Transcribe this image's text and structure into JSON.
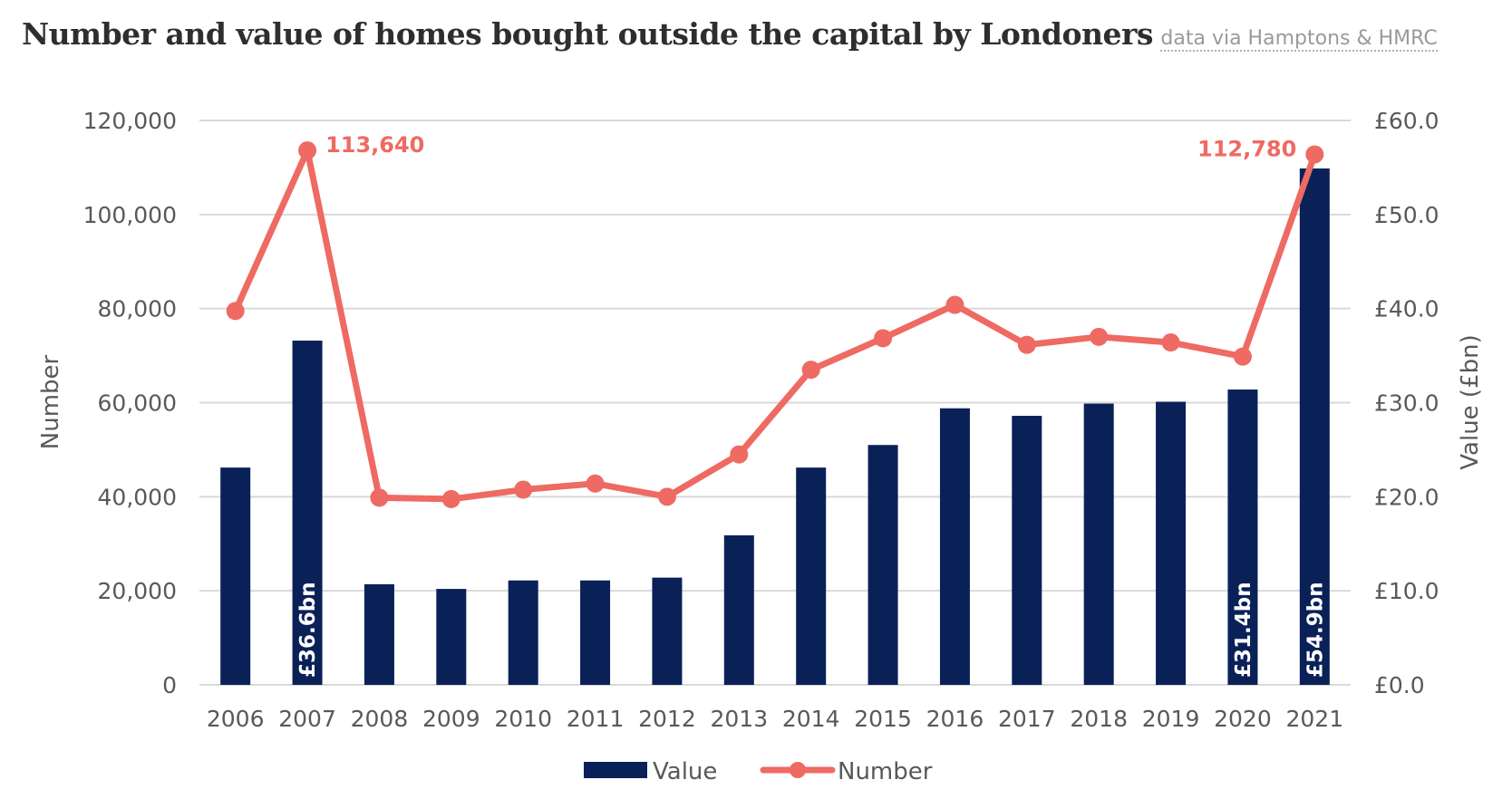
{
  "header": {
    "title": "Number and value of homes bought outside the capital by Londoners",
    "source": "data via Hamptons & HMRC"
  },
  "chart_data": {
    "type": "bar+line",
    "title": "Number and value of homes bought outside the capital by Londoners",
    "subtitle": "data via Hamptons & HMRC",
    "categories": [
      "2006",
      "2007",
      "2008",
      "2009",
      "2010",
      "2011",
      "2012",
      "2013",
      "2014",
      "2015",
      "2016",
      "2017",
      "2018",
      "2019",
      "2020",
      "2021"
    ],
    "series": [
      {
        "name": "Value",
        "type": "bar",
        "axis": "right",
        "color": "#0a2158",
        "values": [
          23.1,
          36.6,
          10.7,
          10.2,
          11.1,
          11.1,
          11.4,
          15.9,
          23.1,
          25.5,
          29.4,
          28.6,
          29.9,
          30.1,
          31.4,
          54.9
        ],
        "labels": {
          "1": "£36.6bn",
          "14": "£31.4bn",
          "15": "£54.9bn"
        }
      },
      {
        "name": "Number",
        "type": "line",
        "axis": "left",
        "color": "#ee6a62",
        "values": [
          79500,
          113640,
          39800,
          39500,
          41500,
          42800,
          40000,
          49000,
          67000,
          73700,
          80800,
          72300,
          74000,
          72800,
          69800,
          112780
        ],
        "labels": {
          "1": "113,640",
          "15": "112,780"
        }
      }
    ],
    "ylabel": "Number",
    "ylabel_right": "Value (£bn)",
    "ylim": [
      0,
      120000
    ],
    "ylim_right": [
      0,
      60
    ],
    "yticks": [
      "0",
      "20,000",
      "40,000",
      "60,000",
      "80,000",
      "100,000",
      "120,000"
    ],
    "yticks_right": [
      "£0.0",
      "£10.0",
      "£20.0",
      "£30.0",
      "£40.0",
      "£50.0",
      "£60.0"
    ],
    "grid": true,
    "legend": {
      "position": "bottom",
      "entries": [
        "Value",
        "Number"
      ]
    }
  }
}
